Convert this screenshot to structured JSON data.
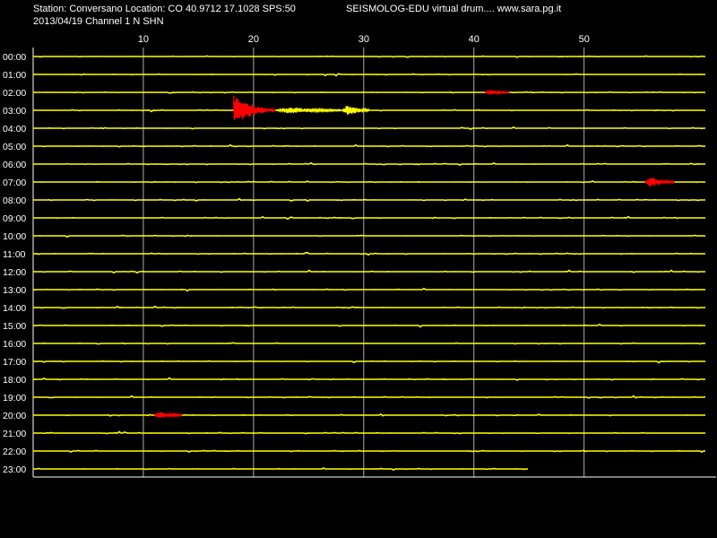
{
  "header": {
    "station_line": "Station: Conversano Location: CO 40.9712 17.1028 SPS:50",
    "brand_line": "SEISMOLOG-EDU virtual drum.... www.sara.pg.it",
    "date_line": "2013/04/19  Channel 1 N SHN"
  },
  "colors": {
    "background": "#000000",
    "trace": "#ffff00",
    "event": "#ff0000",
    "gridline": "#ffffff",
    "text": "#ffffff"
  },
  "chart_data": {
    "type": "line",
    "title": "",
    "xlabel": "",
    "ylabel": "",
    "xlim": [
      0,
      61
    ],
    "x_ticks": [
      10,
      20,
      30,
      40,
      50
    ],
    "grid": true,
    "rows": [
      {
        "label": "00:00"
      },
      {
        "label": "01:00"
      },
      {
        "label": "02:00"
      },
      {
        "label": "03:00"
      },
      {
        "label": "04:00"
      },
      {
        "label": "05:00"
      },
      {
        "label": "06:00"
      },
      {
        "label": "07:00"
      },
      {
        "label": "08:00"
      },
      {
        "label": "09:00"
      },
      {
        "label": "10:00"
      },
      {
        "label": "11:00"
      },
      {
        "label": "12:00"
      },
      {
        "label": "13:00"
      },
      {
        "label": "14:00"
      },
      {
        "label": "15:00"
      },
      {
        "label": "16:00"
      },
      {
        "label": "17:00"
      },
      {
        "label": "18:00"
      },
      {
        "label": "19:00"
      },
      {
        "label": "20:00"
      },
      {
        "label": "21:00"
      },
      {
        "label": "22:00"
      },
      {
        "label": "23:00"
      }
    ],
    "trace_end_last_row_minute": 45,
    "events": [
      {
        "hour": "02:00",
        "start_minute": 41.0,
        "end_minute": 43.2,
        "amplitude": 3,
        "color": "red"
      },
      {
        "hour": "03:00",
        "start_minute": 18.2,
        "end_minute": 22.0,
        "amplitude": 20,
        "color": "red"
      },
      {
        "hour": "03:00",
        "start_minute": 22.0,
        "end_minute": 28.0,
        "amplitude": 4,
        "color": "yellow"
      },
      {
        "hour": "03:00",
        "start_minute": 28.0,
        "end_minute": 30.5,
        "amplitude": 6,
        "color": "yellow"
      },
      {
        "hour": "07:00",
        "start_minute": 55.5,
        "end_minute": 58.2,
        "amplitude": 6,
        "color": "red"
      },
      {
        "hour": "20:00",
        "start_minute": 11.0,
        "end_minute": 13.5,
        "amplitude": 4,
        "color": "red"
      }
    ]
  }
}
